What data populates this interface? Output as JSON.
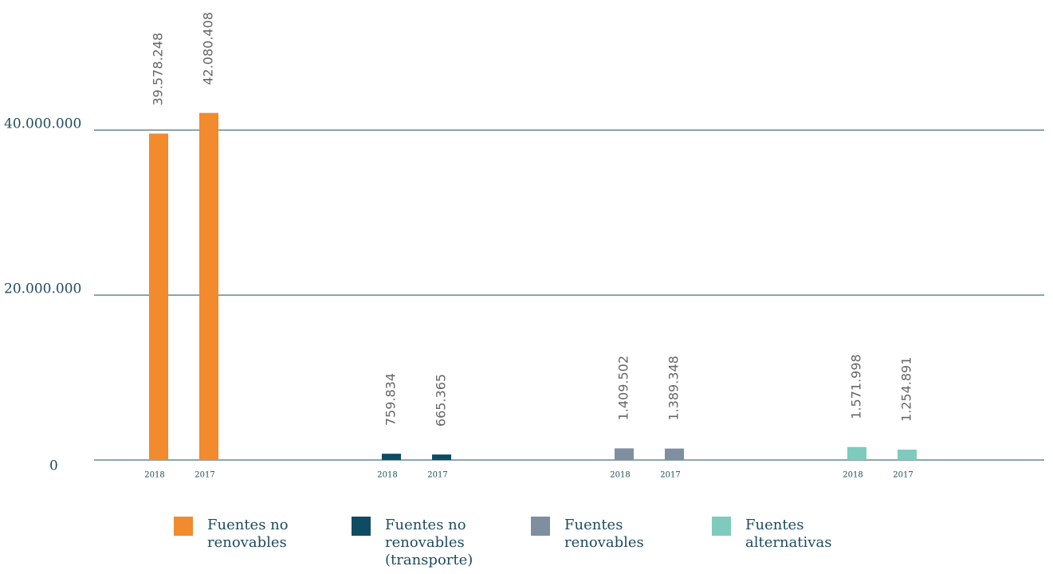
{
  "chart_data": {
    "type": "bar",
    "categories": [
      "2018",
      "2017"
    ],
    "series": [
      {
        "name": "Fuentes no renovables",
        "color": "#f28a2e",
        "values": [
          39578248,
          42080408
        ],
        "value_labels": [
          "39.578.248",
          "42.080.408"
        ]
      },
      {
        "name": "Fuentes no renovables (transporte)",
        "color": "#0e4c63",
        "values": [
          759834,
          665365
        ],
        "value_labels": [
          "759.834",
          "665.365"
        ]
      },
      {
        "name": "Fuentes renovables",
        "color": "#7f8fa0",
        "values": [
          1409502,
          1389348
        ],
        "value_labels": [
          "1.409.502",
          "1.389.348"
        ]
      },
      {
        "name": "Fuentes alternativas",
        "color": "#7ecbbd",
        "values": [
          1571998,
          1254891
        ],
        "value_labels": [
          "1.571.998",
          "1.254.891"
        ]
      }
    ],
    "ylim": [
      0,
      55000000
    ],
    "yticks": [
      0,
      {
        "value": 20000000,
        "label": "20.000.000"
      },
      {
        "value": 40000000,
        "label": "40.000.000"
      }
    ],
    "grid": true
  }
}
